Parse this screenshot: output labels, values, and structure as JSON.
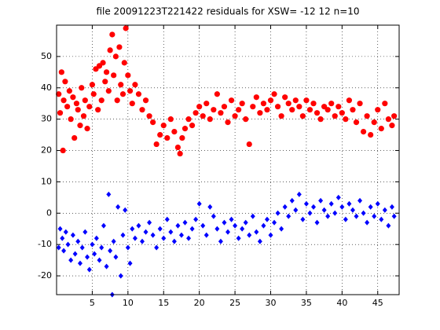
{
  "chart_data": {
    "type": "scatter",
    "title": "file 20091223T221422   residuals for XSW= -12  12  n=10",
    "xlim": [
      0,
      48
    ],
    "ylim": [
      -26,
      60
    ],
    "xticks": [
      5,
      10,
      15,
      20,
      25,
      30,
      35,
      40,
      45
    ],
    "yticks": [
      -20,
      -10,
      0,
      10,
      20,
      30,
      40,
      50
    ],
    "grid": true,
    "series": [
      {
        "color": "#ff0000",
        "marker": "o",
        "x": [
          0.3,
          0.5,
          0.7,
          0.9,
          1.0,
          1.2,
          1.5,
          1.8,
          2.0,
          2.3,
          2.5,
          2.8,
          3.0,
          3.3,
          3.5,
          3.8,
          4.0,
          4.3,
          4.6,
          5.0,
          5.2,
          5.5,
          5.8,
          6.0,
          6.3,
          6.5,
          6.8,
          7.0,
          7.3,
          7.5,
          7.8,
          8.0,
          8.3,
          8.5,
          8.8,
          9.0,
          9.3,
          9.5,
          9.7,
          10.0,
          10.3,
          10.6,
          11.0,
          11.5,
          12.0,
          12.5,
          13.0,
          13.5,
          14.0,
          14.5,
          15.0,
          15.5,
          16.0,
          16.5,
          17.0,
          17.3,
          17.6,
          18.0,
          18.5,
          19.0,
          19.5,
          20.0,
          20.5,
          21.0,
          21.5,
          22.0,
          22.5,
          23.0,
          23.5,
          24.0,
          24.5,
          25.0,
          25.5,
          26.0,
          26.5,
          27.0,
          27.5,
          28.0,
          28.5,
          29.0,
          29.5,
          30.0,
          30.5,
          31.0,
          31.5,
          32.0,
          32.5,
          33.0,
          33.5,
          34.0,
          34.5,
          35.0,
          35.5,
          36.0,
          36.5,
          37.0,
          37.5,
          38.0,
          38.5,
          39.0,
          39.5,
          40.0,
          40.5,
          41.0,
          41.5,
          42.0,
          42.5,
          43.0,
          43.5,
          44.0,
          44.5,
          45.0,
          45.5,
          46.0,
          46.5,
          47.0,
          47.3
        ],
        "y": [
          38,
          32,
          45,
          20,
          36,
          42,
          34,
          39,
          30,
          37,
          24,
          35,
          33,
          28,
          40,
          31,
          36,
          27,
          34,
          41,
          38,
          46,
          33,
          47,
          36,
          48,
          42,
          45,
          39,
          52,
          57,
          44,
          50,
          36,
          53,
          41,
          38,
          48,
          59,
          44,
          39,
          35,
          41,
          38,
          33,
          36,
          31,
          29,
          22,
          25,
          28,
          24,
          30,
          26,
          21,
          19,
          24,
          27,
          30,
          28,
          32,
          34,
          31,
          35,
          30,
          33,
          38,
          32,
          34,
          29,
          36,
          31,
          33,
          35,
          30,
          22,
          34,
          37,
          32,
          35,
          33,
          36,
          38,
          34,
          31,
          37,
          35,
          33,
          36,
          34,
          31,
          36,
          33,
          35,
          32,
          30,
          34,
          33,
          35,
          31,
          34,
          32,
          30,
          36,
          33,
          29,
          35,
          26,
          31,
          25,
          29,
          33,
          27,
          35,
          30,
          28,
          31
        ]
      },
      {
        "color": "#0000ff",
        "marker": "d",
        "x": [
          0.3,
          0.5,
          0.8,
          1.0,
          1.3,
          1.6,
          2.0,
          2.3,
          2.6,
          3.0,
          3.3,
          3.6,
          4.0,
          4.3,
          4.6,
          5.0,
          5.3,
          5.6,
          6.0,
          6.3,
          6.6,
          7.0,
          7.3,
          7.5,
          7.8,
          8.0,
          8.3,
          8.6,
          9.0,
          9.3,
          9.6,
          10.0,
          10.3,
          10.6,
          11.0,
          11.5,
          12.0,
          12.5,
          13.0,
          13.5,
          14.0,
          14.5,
          15.0,
          15.5,
          16.0,
          16.5,
          17.0,
          17.5,
          18.0,
          18.5,
          19.0,
          19.5,
          20.0,
          20.5,
          21.0,
          21.5,
          22.0,
          22.5,
          23.0,
          23.5,
          24.0,
          24.5,
          25.0,
          25.5,
          26.0,
          26.5,
          27.0,
          27.5,
          28.0,
          28.5,
          29.0,
          29.5,
          30.0,
          30.5,
          31.0,
          31.5,
          32.0,
          32.5,
          33.0,
          33.5,
          34.0,
          34.5,
          35.0,
          35.5,
          36.0,
          36.5,
          37.0,
          37.5,
          38.0,
          38.5,
          39.0,
          39.5,
          40.0,
          40.5,
          41.0,
          41.5,
          42.0,
          42.5,
          43.0,
          43.5,
          44.0,
          44.5,
          45.0,
          45.5,
          46.0,
          46.5,
          47.0,
          47.3
        ],
        "y": [
          -11,
          -5,
          -8,
          -12,
          -6,
          -10,
          -15,
          -7,
          -13,
          -9,
          -16,
          -11,
          -6,
          -14,
          -18,
          -10,
          -13,
          -8,
          -15,
          -11,
          -4,
          -17,
          6,
          -12,
          -26,
          -9,
          -14,
          2,
          -20,
          -7,
          1,
          -11,
          -16,
          -5,
          -8,
          -4,
          -9,
          -6,
          -3,
          -7,
          -11,
          -5,
          -8,
          -2,
          -6,
          -9,
          -4,
          -7,
          -3,
          -8,
          -5,
          -2,
          3,
          -4,
          -7,
          2,
          -1,
          -5,
          -9,
          -3,
          -6,
          -2,
          -4,
          -8,
          -5,
          -3,
          -7,
          -1,
          -6,
          -9,
          -4,
          -2,
          -7,
          -3,
          0,
          -5,
          2,
          -1,
          4,
          1,
          6,
          -2,
          3,
          0,
          2,
          -3,
          4,
          1,
          -1,
          3,
          0,
          5,
          2,
          -2,
          3,
          1,
          -1,
          4,
          0,
          -3,
          2,
          -1,
          3,
          -2,
          1,
          -4,
          2,
          -1
        ]
      }
    ]
  }
}
